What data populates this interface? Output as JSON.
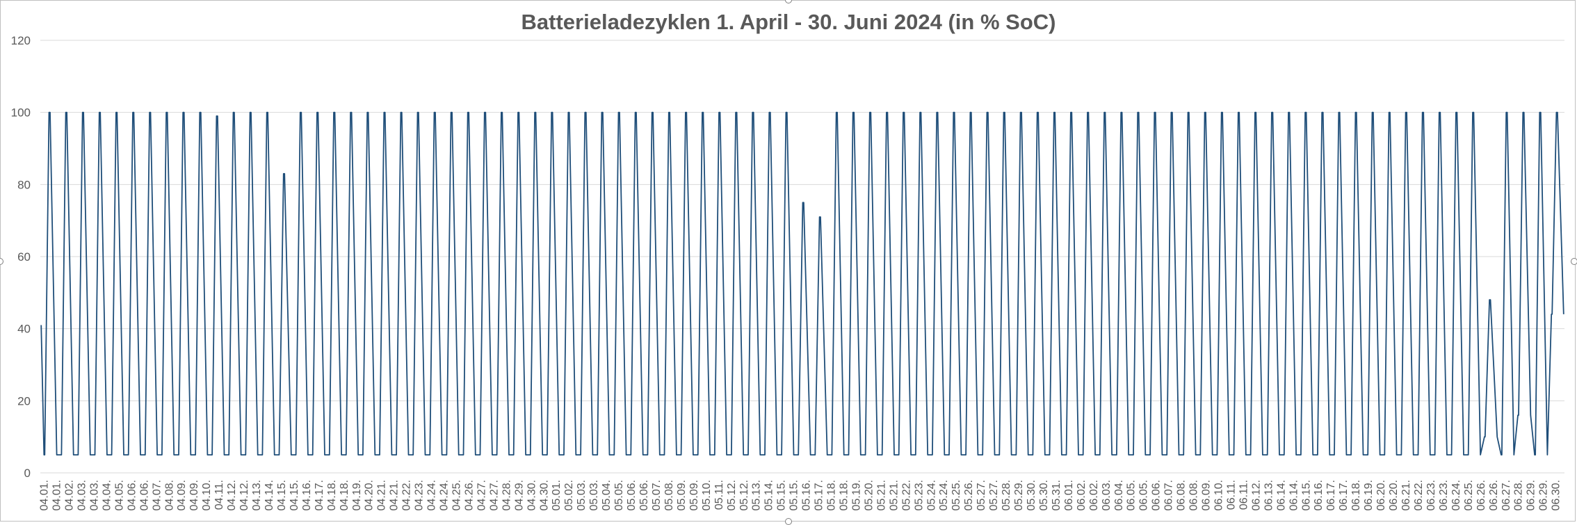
{
  "chart_data": {
    "type": "line",
    "title": "Batterieladezyklen 1. April - 30. Juni 2024 (in % SoC)",
    "xlabel": "",
    "ylabel": "",
    "ylim": [
      0,
      120
    ],
    "yticks": [
      0,
      20,
      40,
      60,
      80,
      100,
      120
    ],
    "grid": true,
    "legend": "none",
    "line_color": "#1f4e79",
    "x_tick_labels": [
      "04.01.",
      "04.01.",
      "04.02.",
      "04.03.",
      "04.03.",
      "04.04.",
      "04.05.",
      "04.06.",
      "04.06.",
      "04.07.",
      "04.08.",
      "04.09.",
      "04.09.",
      "04.10.",
      "04.11.",
      "04.12.",
      "04.12.",
      "04.13.",
      "04.14.",
      "04.15.",
      "04.15.",
      "04.16.",
      "04.17.",
      "04.18.",
      "04.18.",
      "04.19.",
      "04.20.",
      "04.21.",
      "04.21.",
      "04.22.",
      "04.23.",
      "04.24.",
      "04.24.",
      "04.25.",
      "04.26.",
      "04.27.",
      "04.27.",
      "04.28.",
      "04.29.",
      "04.30.",
      "04.30.",
      "05.01.",
      "05.02.",
      "05.03.",
      "05.03.",
      "05.04.",
      "05.05.",
      "05.06.",
      "05.06.",
      "05.07.",
      "05.08.",
      "05.09.",
      "05.09.",
      "05.10.",
      "05.11.",
      "05.12.",
      "05.12.",
      "05.13.",
      "05.14.",
      "05.15.",
      "05.15.",
      "05.16.",
      "05.17.",
      "05.18.",
      "05.18.",
      "05.19.",
      "05.20.",
      "05.21.",
      "05.21.",
      "05.22.",
      "05.23.",
      "05.24.",
      "05.24.",
      "05.25.",
      "05.26.",
      "05.27.",
      "05.27.",
      "05.28.",
      "05.29.",
      "05.30.",
      "05.30.",
      "05.31.",
      "06.01.",
      "06.02.",
      "06.02.",
      "06.03.",
      "06.04.",
      "06.05.",
      "06.05.",
      "06.06.",
      "06.07.",
      "06.08.",
      "06.08.",
      "06.09.",
      "06.10.",
      "06.11.",
      "06.11.",
      "06.12.",
      "06.13.",
      "06.14.",
      "06.14.",
      "06.15.",
      "06.16.",
      "06.17.",
      "06.17.",
      "06.18.",
      "06.19.",
      "06.20.",
      "06.20.",
      "06.21.",
      "06.22.",
      "06.23.",
      "06.23.",
      "06.24.",
      "06.25.",
      "06.26.",
      "06.26.",
      "06.27.",
      "06.28.",
      "06.29.",
      "06.29.",
      "06.30."
    ],
    "x_range_days": [
      0,
      91
    ],
    "series": [
      {
        "daily_cycles": [
          {
            "day": 1,
            "max": 100,
            "min": 5
          },
          {
            "day": 2,
            "max": 100,
            "min": 5
          },
          {
            "day": 3,
            "max": 100,
            "min": 5
          },
          {
            "day": 4,
            "max": 100,
            "min": 5
          },
          {
            "day": 5,
            "max": 100,
            "min": 5
          },
          {
            "day": 6,
            "max": 100,
            "min": 5
          },
          {
            "day": 7,
            "max": 100,
            "min": 5
          },
          {
            "day": 8,
            "max": 100,
            "min": 5
          },
          {
            "day": 9,
            "max": 100,
            "min": 5
          },
          {
            "day": 10,
            "max": 100,
            "min": 5
          },
          {
            "day": 11,
            "max": 99,
            "min": 5
          },
          {
            "day": 12,
            "max": 100,
            "min": 5
          },
          {
            "day": 13,
            "max": 100,
            "min": 5
          },
          {
            "day": 14,
            "max": 100,
            "min": 5
          },
          {
            "day": 15,
            "max": 83,
            "min": 5
          },
          {
            "day": 16,
            "max": 100,
            "min": 5
          },
          {
            "day": 17,
            "max": 100,
            "min": 5
          },
          {
            "day": 18,
            "max": 100,
            "min": 5
          },
          {
            "day": 19,
            "max": 100,
            "min": 5
          },
          {
            "day": 20,
            "max": 100,
            "min": 5
          },
          {
            "day": 21,
            "max": 100,
            "min": 5
          },
          {
            "day": 22,
            "max": 100,
            "min": 5
          },
          {
            "day": 23,
            "max": 100,
            "min": 5
          },
          {
            "day": 24,
            "max": 100,
            "min": 5
          },
          {
            "day": 25,
            "max": 100,
            "min": 5
          },
          {
            "day": 26,
            "max": 100,
            "min": 5
          },
          {
            "day": 27,
            "max": 100,
            "min": 5
          },
          {
            "day": 28,
            "max": 100,
            "min": 5
          },
          {
            "day": 29,
            "max": 100,
            "min": 5
          },
          {
            "day": 30,
            "max": 100,
            "min": 5
          },
          {
            "day": 31,
            "max": 100,
            "min": 5
          },
          {
            "day": 32,
            "max": 100,
            "min": 5
          },
          {
            "day": 33,
            "max": 100,
            "min": 5
          },
          {
            "day": 34,
            "max": 100,
            "min": 5
          },
          {
            "day": 35,
            "max": 100,
            "min": 5
          },
          {
            "day": 36,
            "max": 100,
            "min": 5
          },
          {
            "day": 37,
            "max": 100,
            "min": 5
          },
          {
            "day": 38,
            "max": 100,
            "min": 5
          },
          {
            "day": 39,
            "max": 100,
            "min": 5
          },
          {
            "day": 40,
            "max": 100,
            "min": 5
          },
          {
            "day": 41,
            "max": 100,
            "min": 5
          },
          {
            "day": 42,
            "max": 100,
            "min": 5
          },
          {
            "day": 43,
            "max": 100,
            "min": 5
          },
          {
            "day": 44,
            "max": 100,
            "min": 5
          },
          {
            "day": 45,
            "max": 100,
            "min": 5
          },
          {
            "day": 46,
            "max": 75,
            "min": 5
          },
          {
            "day": 47,
            "max": 71,
            "min": 5
          },
          {
            "day": 48,
            "max": 100,
            "min": 5
          },
          {
            "day": 49,
            "max": 100,
            "min": 5
          },
          {
            "day": 50,
            "max": 100,
            "min": 5
          },
          {
            "day": 51,
            "max": 100,
            "min": 5
          },
          {
            "day": 52,
            "max": 100,
            "min": 5
          },
          {
            "day": 53,
            "max": 100,
            "min": 5
          },
          {
            "day": 54,
            "max": 100,
            "min": 5
          },
          {
            "day": 55,
            "max": 100,
            "min": 5
          },
          {
            "day": 56,
            "max": 100,
            "min": 5
          },
          {
            "day": 57,
            "max": 100,
            "min": 5
          },
          {
            "day": 58,
            "max": 100,
            "min": 5
          },
          {
            "day": 59,
            "max": 100,
            "min": 5
          },
          {
            "day": 60,
            "max": 100,
            "min": 5
          },
          {
            "day": 61,
            "max": 100,
            "min": 5
          },
          {
            "day": 62,
            "max": 100,
            "min": 5
          },
          {
            "day": 63,
            "max": 100,
            "min": 5
          },
          {
            "day": 64,
            "max": 100,
            "min": 5
          },
          {
            "day": 65,
            "max": 100,
            "min": 5
          },
          {
            "day": 66,
            "max": 100,
            "min": 5
          },
          {
            "day": 67,
            "max": 100,
            "min": 5
          },
          {
            "day": 68,
            "max": 100,
            "min": 5
          },
          {
            "day": 69,
            "max": 100,
            "min": 5
          },
          {
            "day": 70,
            "max": 100,
            "min": 5
          },
          {
            "day": 71,
            "max": 100,
            "min": 5
          },
          {
            "day": 72,
            "max": 100,
            "min": 5
          },
          {
            "day": 73,
            "max": 100,
            "min": 5
          },
          {
            "day": 74,
            "max": 100,
            "min": 5
          },
          {
            "day": 75,
            "max": 100,
            "min": 5
          },
          {
            "day": 76,
            "max": 100,
            "min": 5
          },
          {
            "day": 77,
            "max": 100,
            "min": 5
          },
          {
            "day": 78,
            "max": 100,
            "min": 5
          },
          {
            "day": 79,
            "max": 100,
            "min": 5
          },
          {
            "day": 80,
            "max": 100,
            "min": 5
          },
          {
            "day": 81,
            "max": 100,
            "min": 5
          },
          {
            "day": 82,
            "max": 100,
            "min": 5
          },
          {
            "day": 83,
            "max": 100,
            "min": 5
          },
          {
            "day": 84,
            "max": 100,
            "min": 5
          },
          {
            "day": 85,
            "max": 100,
            "min": 5
          },
          {
            "day": 86,
            "max": 100,
            "min": 5
          },
          {
            "day": 87,
            "max": 48,
            "min": 10
          },
          {
            "day": 88,
            "max": 100,
            "min": 5
          },
          {
            "day": 89,
            "max": 100,
            "min": 16
          },
          {
            "day": 90,
            "max": 100,
            "min": 5
          },
          {
            "day": 91,
            "max": 100,
            "min": 44
          }
        ]
      }
    ]
  }
}
